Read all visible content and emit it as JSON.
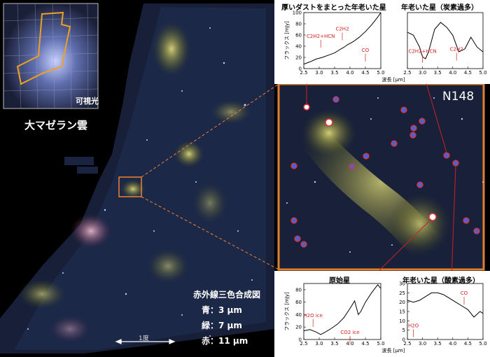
{
  "inset": {
    "label": "可視光"
  },
  "lmc_title": "大マゼラン雲",
  "n148_label": "N148",
  "composite": {
    "title": "赤外線三色合成図",
    "blue": "青：3 μm",
    "green": "緑：7 μm",
    "red": "赤：11 μm"
  },
  "scale_label": "1度",
  "shared": {
    "ylabel": "フラックス [mJy]",
    "xlabel": "波長 [μm]",
    "xticks": [
      "2.5",
      "3.0",
      "3.5",
      "4.0",
      "4.5",
      "5.0"
    ]
  },
  "panels": {
    "p1": {
      "title": "厚いダストをまとった年老いた星",
      "labels": [
        "C2H2+HCN",
        "C2H2",
        "CO"
      ],
      "yticks": [
        "0",
        "20",
        "40",
        "60",
        "80",
        "100"
      ]
    },
    "p2": {
      "title": "年老いた星（炭素過多）",
      "labels": [
        "C2H2+HCN",
        "C2H2"
      ],
      "yticks": []
    },
    "p3": {
      "title": "原始星",
      "labels": [
        "H2O ice",
        "CO2 ice"
      ],
      "yticks": [
        "0",
        "20",
        "40",
        "60",
        "80"
      ]
    },
    "p4": {
      "title": "年老いた星（酸素過多）",
      "labels": [
        "H2O",
        "CO"
      ],
      "yticks": [
        "0",
        "5",
        "10",
        "15",
        "20",
        "25",
        "30"
      ]
    }
  },
  "chart_data": [
    {
      "type": "line",
      "title": "厚いダストをまとった年老いた星",
      "xlabel": "波長 [μm]",
      "ylabel": "フラックス [mJy]",
      "xlim": [
        2.5,
        5.0
      ],
      "ylim": [
        0,
        100
      ],
      "x": [
        2.5,
        2.7,
        2.9,
        3.1,
        3.3,
        3.5,
        3.7,
        3.8,
        3.9,
        4.1,
        4.3,
        4.5,
        4.7,
        4.9,
        5.0
      ],
      "y": [
        8,
        12,
        17,
        20,
        24,
        28,
        35,
        38,
        42,
        48,
        56,
        66,
        78,
        92,
        100
      ]
    },
    {
      "type": "line",
      "title": "年老いた星（炭素過多）",
      "xlabel": "波長 [μm]",
      "xlim": [
        2.5,
        5.0
      ],
      "x": [
        2.5,
        2.7,
        2.9,
        3.0,
        3.1,
        3.2,
        3.4,
        3.6,
        3.8,
        4.0,
        4.2,
        4.4,
        4.6,
        4.8,
        5.0
      ],
      "y": [
        0.75,
        0.72,
        0.6,
        0.5,
        0.48,
        0.55,
        0.78,
        0.85,
        0.8,
        0.72,
        0.55,
        0.58,
        0.7,
        0.6,
        0.55
      ]
    },
    {
      "type": "line",
      "title": "原始星",
      "xlabel": "波長 [μm]",
      "ylabel": "フラックス [mJy]",
      "xlim": [
        2.5,
        5.0
      ],
      "ylim": [
        0,
        90
      ],
      "x": [
        2.5,
        2.7,
        2.9,
        3.05,
        3.2,
        3.4,
        3.6,
        3.8,
        4.0,
        4.15,
        4.27,
        4.35,
        4.5,
        4.7,
        4.9,
        5.0
      ],
      "y": [
        14,
        16,
        12,
        8,
        12,
        18,
        25,
        35,
        50,
        62,
        40,
        45,
        60,
        75,
        88,
        82
      ]
    },
    {
      "type": "line",
      "title": "年老いた星（酸素過多）",
      "xlabel": "波長 [μm]",
      "xlim": [
        2.5,
        5.0
      ],
      "ylim": [
        0,
        30
      ],
      "x": [
        2.5,
        2.7,
        2.9,
        3.1,
        3.3,
        3.5,
        3.7,
        3.9,
        4.1,
        4.3,
        4.5,
        4.7,
        4.9,
        5.0
      ],
      "y": [
        21,
        20,
        21,
        23,
        25,
        25,
        24,
        22,
        20,
        18,
        16,
        12,
        15,
        14
      ]
    }
  ]
}
